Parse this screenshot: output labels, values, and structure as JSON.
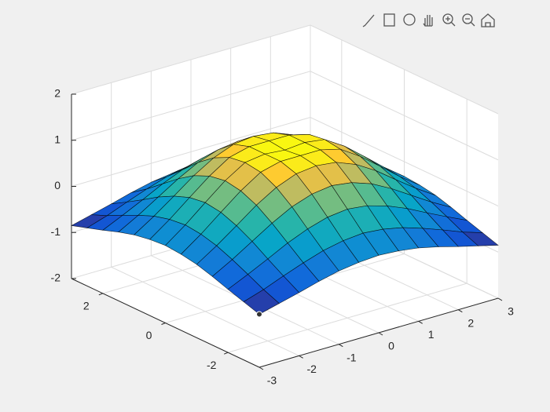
{
  "chart_data": {
    "type": "surface",
    "colormap": "parula",
    "grid": true,
    "x": [
      -3,
      -2.5,
      -2,
      -1.5,
      -1,
      -0.5,
      0,
      0.5,
      1,
      1.5,
      2,
      2.5,
      3
    ],
    "y": [
      -3,
      -2.5,
      -2,
      -1.5,
      -1,
      -0.5,
      0,
      0.5,
      1,
      1.5,
      2,
      2.5,
      3
    ],
    "z": [
      [
        -0.85,
        -0.74,
        -0.63,
        -0.51,
        -0.41,
        -0.35,
        -0.32,
        -0.35,
        -0.41,
        -0.51,
        -0.63,
        -0.74,
        -0.85
      ],
      [
        -0.74,
        -0.6,
        -0.43,
        -0.27,
        -0.13,
        -0.04,
        0,
        -0.04,
        -0.13,
        -0.27,
        -0.43,
        -0.6,
        -0.74
      ],
      [
        -0.63,
        -0.43,
        -0.22,
        0,
        0.18,
        0.31,
        0.36,
        0.31,
        0.18,
        0,
        -0.22,
        -0.43,
        -0.63
      ],
      [
        -0.51,
        -0.27,
        0,
        0.27,
        0.5,
        0.65,
        0.71,
        0.65,
        0.5,
        0.27,
        0,
        -0.27,
        -0.51
      ],
      [
        -0.41,
        -0.13,
        0.18,
        0.5,
        0.76,
        0.93,
        0.98,
        0.93,
        0.76,
        0.5,
        0.18,
        -0.13,
        -0.41
      ],
      [
        -0.35,
        -0.04,
        0.31,
        0.65,
        0.93,
        1.04,
        1.04,
        1.04,
        0.93,
        0.65,
        0.31,
        -0.04,
        -0.35
      ],
      [
        -0.32,
        0,
        0.36,
        0.71,
        0.98,
        1.04,
        1,
        1.04,
        0.98,
        0.71,
        0.36,
        0,
        -0.32
      ],
      [
        -0.35,
        -0.04,
        0.31,
        0.65,
        0.93,
        1.04,
        1.04,
        1.04,
        0.93,
        0.65,
        0.31,
        -0.04,
        -0.35
      ],
      [
        -0.41,
        -0.13,
        0.18,
        0.5,
        0.76,
        0.93,
        0.98,
        0.93,
        0.76,
        0.5,
        0.18,
        -0.13,
        -0.41
      ],
      [
        -0.51,
        -0.27,
        0,
        0.27,
        0.5,
        0.65,
        0.71,
        0.65,
        0.5,
        0.27,
        0,
        -0.27,
        -0.51
      ],
      [
        -0.63,
        -0.43,
        -0.22,
        0,
        0.18,
        0.31,
        0.36,
        0.31,
        0.18,
        0,
        -0.22,
        -0.43,
        -0.63
      ],
      [
        -0.74,
        -0.6,
        -0.43,
        -0.27,
        -0.13,
        -0.04,
        0,
        -0.04,
        -0.13,
        -0.27,
        -0.43,
        -0.6,
        -0.74
      ],
      [
        -0.85,
        -0.74,
        -0.63,
        -0.51,
        -0.41,
        -0.35,
        -0.32,
        -0.35,
        -0.41,
        -0.51,
        -0.63,
        -0.74,
        -0.85
      ]
    ],
    "xlim": [
      -3,
      3
    ],
    "ylim": [
      -3,
      3
    ],
    "zlim": [
      -2,
      2
    ],
    "xticks": [
      -3,
      -2,
      -1,
      0,
      1,
      2,
      3
    ],
    "yticks": [
      -2,
      0,
      2
    ],
    "zticks": [
      -2,
      -1,
      0,
      1,
      2
    ]
  }
}
